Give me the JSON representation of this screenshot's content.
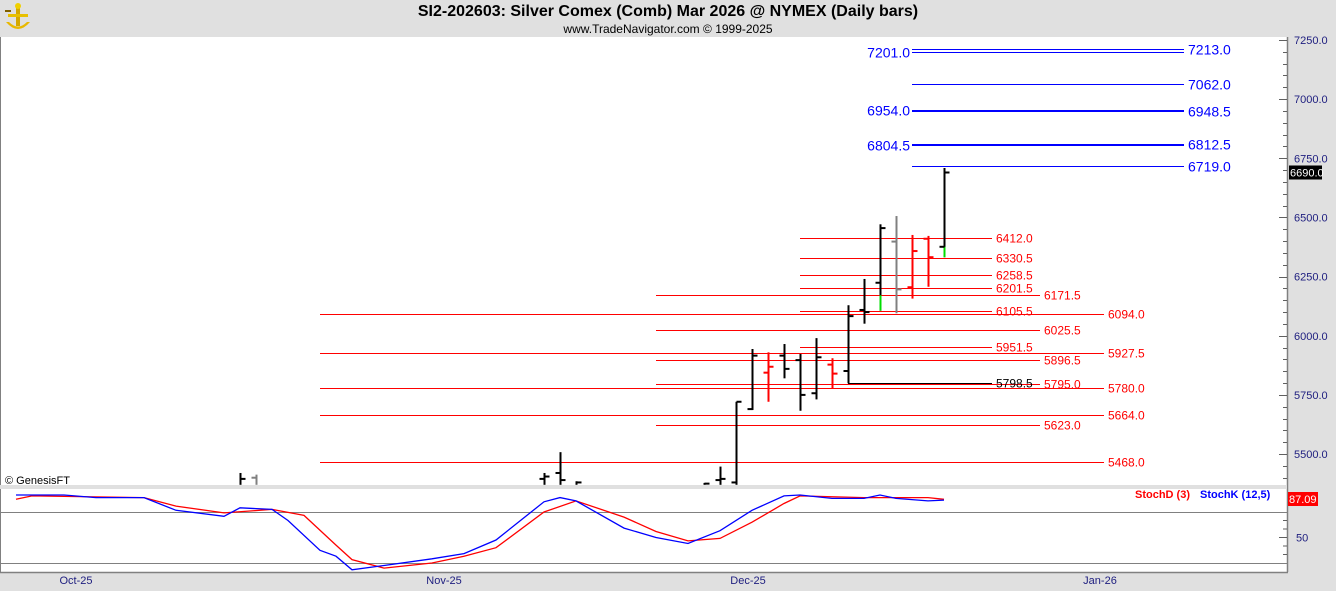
{
  "header": {
    "title": "SI2-202603:  Silver Comex (Comb) Mar 2026 @ NYMEX  (Daily bars)",
    "subtitle": "www.TradeNavigator.com © 1999-2025",
    "logo_icon": "gold-anchor-logo"
  },
  "watermark": "© GenesisFT",
  "colors": {
    "up": "#000000",
    "down": "#ff0000",
    "inside": "#808080",
    "green": "#00dd00",
    "levels_red": "#ff0000",
    "levels_blue": "#0000ff",
    "stochD": "#ff0000",
    "stochK": "#0000ff"
  },
  "chart_data": [
    {
      "type": "ohlc",
      "ylim": [
        5370,
        7280
      ],
      "yticks": [
        "7250.0",
        "7000.0",
        "6750.0",
        "6500.0",
        "6250.0",
        "6000.0",
        "5750.0",
        "5500.0"
      ],
      "xticks": [
        {
          "date": "2025-10-01",
          "label": "Oct-25"
        },
        {
          "date": "2025-11-03",
          "label": "Nov-25"
        },
        {
          "date": "2025-12-01",
          "label": "Dec-25"
        },
        {
          "date": "2026-01-02",
          "label": "Jan-26"
        }
      ],
      "last_price": "6690.0",
      "bars": [
        {
          "date": "2025-10-15",
          "o": 5370,
          "h": 5420,
          "l": 5370,
          "c": 5395,
          "color": "up"
        },
        {
          "date": "2025-10-16",
          "o": 5400,
          "h": 5413,
          "l": 5370,
          "c": 5370,
          "color": "inside"
        },
        {
          "date": "2025-11-11",
          "o": 5395,
          "h": 5420,
          "l": 5370,
          "c": 5405,
          "color": "up"
        },
        {
          "date": "2025-11-12",
          "o": 5420,
          "h": 5508,
          "l": 5370,
          "c": 5390,
          "color": "up"
        },
        {
          "date": "2025-11-13",
          "o": 5370,
          "h": 5385,
          "l": 5370,
          "c": 5380,
          "color": "up"
        },
        {
          "date": "2025-11-25",
          "o": 5370,
          "h": 5378,
          "l": 5370,
          "c": 5375,
          "color": "up"
        },
        {
          "date": "2025-11-26",
          "o": 5390,
          "h": 5447,
          "l": 5370,
          "c": 5395,
          "color": "up"
        },
        {
          "date": "2025-11-28",
          "o": 5380,
          "h": 5721,
          "l": 5370,
          "c": 5721,
          "color": "up"
        },
        {
          "date": "2025-12-01",
          "o": 5690,
          "h": 5944,
          "l": 5686,
          "c": 5916,
          "color": "up"
        },
        {
          "date": "2025-12-02",
          "o": 5844,
          "h": 5930,
          "l": 5721,
          "c": 5869,
          "color": "down"
        },
        {
          "date": "2025-12-03",
          "o": 5916,
          "h": 5965,
          "l": 5820,
          "c": 5860,
          "color": "up"
        },
        {
          "date": "2025-12-04",
          "o": 5897,
          "h": 5923,
          "l": 5683,
          "c": 5750,
          "color": "up"
        },
        {
          "date": "2025-12-05",
          "o": 5757,
          "h": 5990,
          "l": 5731,
          "c": 5909,
          "color": "up"
        },
        {
          "date": "2025-12-08",
          "o": 5878,
          "h": 5905,
          "l": 5778,
          "c": 5840,
          "color": "down"
        },
        {
          "date": "2025-12-09",
          "o": 5851,
          "h": 6129,
          "l": 5799,
          "c": 6083,
          "color": "up"
        },
        {
          "date": "2025-12-10",
          "o": 6109,
          "h": 6240,
          "l": 6051,
          "c": 6100,
          "color": "up"
        },
        {
          "date": "2025-12-11",
          "o": 6224,
          "h": 6471,
          "l": 6106,
          "c": 6455,
          "color": "up",
          "green_below": 6171
        },
        {
          "date": "2025-12-12",
          "o": 6398,
          "h": 6506,
          "l": 6095,
          "c": 6196,
          "color": "inside"
        },
        {
          "date": "2025-12-15",
          "o": 6205,
          "h": 6426,
          "l": 6157,
          "c": 6358,
          "color": "down"
        },
        {
          "date": "2025-12-16",
          "o": 6410,
          "h": 6422,
          "l": 6207,
          "c": 6332,
          "color": "down"
        },
        {
          "date": "2025-12-17",
          "o": 6376,
          "h": 6709,
          "l": 6332,
          "c": 6690,
          "color": "up",
          "green_below": 6376
        }
      ],
      "levels": [
        {
          "value": 6094.0,
          "label": "6094.0",
          "from": "2025-10-22",
          "to": "2026-01-02",
          "color": "levels_red"
        },
        {
          "value": 5927.5,
          "label": "5927.5",
          "from": "2025-10-22",
          "to": "2026-01-02",
          "color": "levels_red"
        },
        {
          "value": 5780.0,
          "label": "5780.0",
          "from": "2025-10-22",
          "to": "2026-01-02",
          "color": "levels_red"
        },
        {
          "value": 5664.0,
          "label": "5664.0",
          "from": "2025-10-22",
          "to": "2026-01-02",
          "color": "levels_red"
        },
        {
          "value": 5468.0,
          "label": "5468.0",
          "from": "2025-10-22",
          "to": "2026-01-02",
          "color": "levels_red"
        },
        {
          "value": 6171.5,
          "label": "6171.5",
          "from": "2025-11-20",
          "to": "2025-12-26",
          "color": "levels_red"
        },
        {
          "value": 6025.5,
          "label": "6025.5",
          "from": "2025-11-20",
          "to": "2025-12-26",
          "color": "levels_red"
        },
        {
          "value": 5896.5,
          "label": "5896.5",
          "from": "2025-11-20",
          "to": "2025-12-26",
          "color": "levels_red"
        },
        {
          "value": 5795.0,
          "label": "5795.0",
          "from": "2025-11-20",
          "to": "2025-12-26",
          "color": "levels_red"
        },
        {
          "value": 5623.0,
          "label": "5623.0",
          "from": "2025-11-20",
          "to": "2025-12-26",
          "color": "levels_red"
        },
        {
          "value": 6412.0,
          "label": "6412.0",
          "from": "2025-12-04",
          "to": "2025-12-22",
          "color": "levels_red"
        },
        {
          "value": 6330.5,
          "label": "6330.5",
          "from": "2025-12-04",
          "to": "2025-12-22",
          "color": "levels_red"
        },
        {
          "value": 6258.5,
          "label": "6258.5",
          "from": "2025-12-04",
          "to": "2025-12-22",
          "color": "levels_red"
        },
        {
          "value": 6201.5,
          "label": "6201.5",
          "from": "2025-12-04",
          "to": "2025-12-22",
          "color": "levels_red"
        },
        {
          "value": 6105.5,
          "label": "6105.5",
          "from": "2025-12-04",
          "to": "2025-12-22",
          "color": "levels_red"
        },
        {
          "value": 5951.5,
          "label": "5951.5",
          "from": "2025-12-04",
          "to": "2025-12-22",
          "color": "levels_red"
        },
        {
          "value": 5798.5,
          "label": "5798.5",
          "from": "2025-12-09",
          "to": "2025-12-22",
          "color": "up"
        },
        {
          "value": 7213.0,
          "label": "7213.0",
          "left_value": 7201.0,
          "left_label": "7201.0",
          "from": "2025-12-15",
          "to": "2026-01-09",
          "color": "levels_blue"
        },
        {
          "value": 7062.0,
          "label": "7062.0",
          "from": "2025-12-15",
          "to": "2026-01-09",
          "color": "levels_blue"
        },
        {
          "value": 6948.5,
          "label": "6948.5",
          "left_value": 6954.0,
          "left_label": "6954.0",
          "from": "2025-12-15",
          "to": "2026-01-09",
          "color": "levels_blue"
        },
        {
          "value": 6812.5,
          "label": "6812.5",
          "left_value": 6804.5,
          "left_label": "6804.5",
          "from": "2025-12-15",
          "to": "2026-01-09",
          "color": "levels_blue"
        },
        {
          "value": 6719.0,
          "label": "6719.0",
          "from": "2025-12-15",
          "to": "2026-01-09",
          "color": "levels_blue"
        }
      ]
    },
    {
      "type": "line",
      "ylim": [
        0,
        110
      ],
      "yticks": [
        "50"
      ],
      "gridlines": [
        80,
        20
      ],
      "last_value": "87.09",
      "series": [
        {
          "name": "StochD (3)",
          "color": "stochD",
          "points": [
            [
              "2025-09-25",
              95
            ],
            [
              "2025-09-26",
              99
            ],
            [
              "2025-10-07",
              97
            ],
            [
              "2025-10-09",
              87
            ],
            [
              "2025-10-14",
              79
            ],
            [
              "2025-10-17",
              83
            ],
            [
              "2025-10-21",
              76
            ],
            [
              "2025-10-23",
              41
            ],
            [
              "2025-10-24",
              24
            ],
            [
              "2025-10-28",
              14
            ],
            [
              "2025-10-31",
              20
            ],
            [
              "2025-11-04",
              28
            ],
            [
              "2025-11-06",
              38
            ],
            [
              "2025-11-11",
              80
            ],
            [
              "2025-11-13",
              93
            ],
            [
              "2025-11-18",
              74
            ],
            [
              "2025-11-20",
              57
            ],
            [
              "2025-11-24",
              46
            ],
            [
              "2025-11-26",
              49
            ],
            [
              "2025-12-01",
              68
            ],
            [
              "2025-12-03",
              90
            ],
            [
              "2025-12-04",
              99
            ],
            [
              "2025-12-10",
              97
            ],
            [
              "2025-12-16",
              97
            ],
            [
              "2025-12-17",
              95
            ]
          ]
        },
        {
          "name": "StochK (12,5)",
          "color": "stochK",
          "points": [
            [
              "2025-09-25",
              100
            ],
            [
              "2025-09-30",
              100
            ],
            [
              "2025-10-02",
              97
            ],
            [
              "2025-10-07",
              97
            ],
            [
              "2025-10-09",
              82
            ],
            [
              "2025-10-14",
              75
            ],
            [
              "2025-10-15",
              85
            ],
            [
              "2025-10-17",
              83
            ],
            [
              "2025-10-20",
              70
            ],
            [
              "2025-10-22",
              35
            ],
            [
              "2025-10-23",
              28
            ],
            [
              "2025-10-24",
              12
            ],
            [
              "2025-10-28",
              17
            ],
            [
              "2025-10-31",
              25
            ],
            [
              "2025-11-04",
              31
            ],
            [
              "2025-11-06",
              47
            ],
            [
              "2025-11-11",
              92
            ],
            [
              "2025-11-12",
              97
            ],
            [
              "2025-11-13",
              93
            ],
            [
              "2025-11-18",
              61
            ],
            [
              "2025-11-20",
              50
            ],
            [
              "2025-11-24",
              43
            ],
            [
              "2025-11-26",
              58
            ],
            [
              "2025-12-01",
              82
            ],
            [
              "2025-12-03",
              99
            ],
            [
              "2025-12-04",
              100
            ],
            [
              "2025-12-08",
              96
            ],
            [
              "2025-12-10",
              96
            ],
            [
              "2025-12-11",
              100
            ],
            [
              "2025-12-12",
              96
            ],
            [
              "2025-12-16",
              93
            ],
            [
              "2025-12-17",
              94
            ]
          ]
        }
      ]
    }
  ]
}
